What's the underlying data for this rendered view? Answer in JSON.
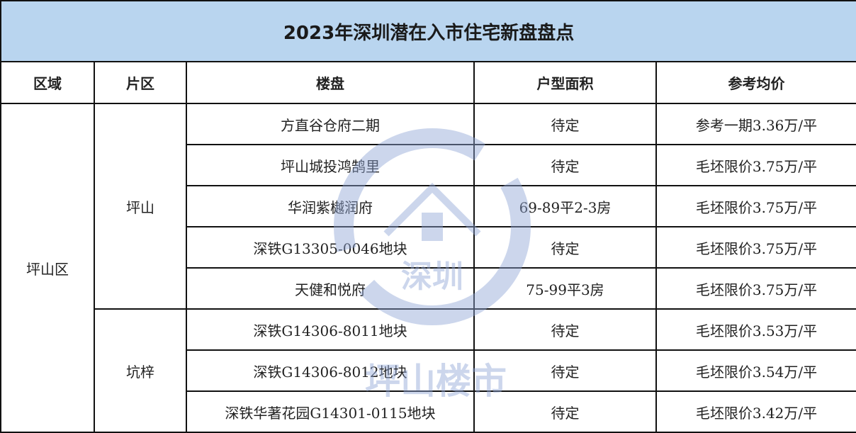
{
  "title": "2023年深圳潜在入市住宅新盘盘点",
  "headers": [
    "区域",
    "片区",
    "楼盘",
    "户型面积",
    "参考均价"
  ],
  "district": "坪山区",
  "areas": [
    "坪山",
    "坑梓"
  ],
  "rows": [
    {
      "project": "方直谷仓府二期",
      "size": "待定",
      "price": "参考一期3.36万/平"
    },
    {
      "project": "坪山城投鸿鹄里",
      "size": "待定",
      "price": "毛坯限价3.75万/平"
    },
    {
      "project": "华润紫樾润府",
      "size": "69-89平2-3房",
      "price": "毛坯限价3.75万/平"
    },
    {
      "project": "深铁G13305-0046地块",
      "size": "待定",
      "price": "毛坯限价3.75万/平"
    },
    {
      "project": "天健和悦府",
      "size": "75-99平3房",
      "price": "毛坯限价3.75万/平"
    },
    {
      "project": "深铁G14306-8011地块",
      "size": "待定",
      "price": "毛坯限价3.53万/平"
    },
    {
      "project": "深铁G14306-8012地块",
      "size": "待定",
      "price": "毛坯限价3.54万/平"
    },
    {
      "project": "深铁华著花园G14301-0115地块",
      "size": "待定",
      "price": "毛坯限价3.42万/平"
    }
  ],
  "watermark": {
    "line1": "深圳",
    "line2": "坪山楼市",
    "color": "#8fa6d6"
  }
}
